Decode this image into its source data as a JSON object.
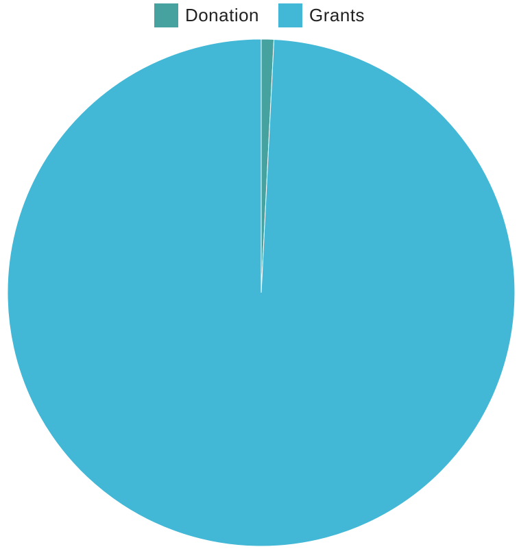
{
  "chart_data": {
    "type": "pie",
    "title": "",
    "legend_position": "top-center",
    "slices": [
      {
        "label": "Donation",
        "value": 0.8,
        "color": "#45a29f"
      },
      {
        "label": "Grants",
        "value": 99.2,
        "color": "#42b8d6"
      }
    ]
  }
}
